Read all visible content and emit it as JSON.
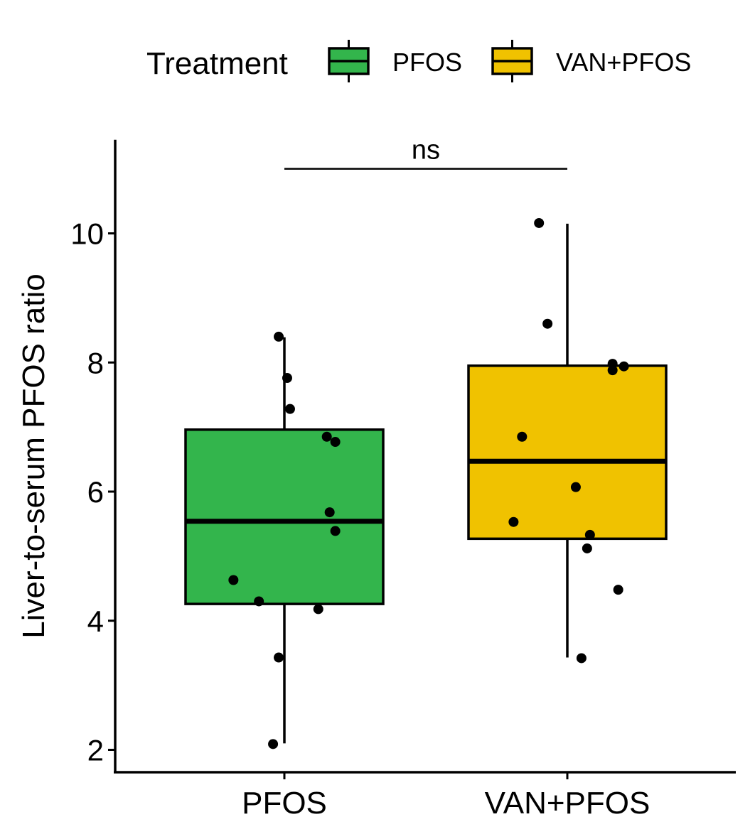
{
  "chart_data": {
    "type": "box",
    "legend": {
      "title": "Treatment",
      "position": "top",
      "entries": [
        {
          "label": "PFOS",
          "color": "#33b54c"
        },
        {
          "label": "VAN+PFOS",
          "color": "#f0c200"
        }
      ]
    },
    "xlabel": "",
    "ylabel": "Liver-to-serum PFOS ratio",
    "categories": [
      "PFOS",
      "VAN+PFOS"
    ],
    "ylim": [
      1.65,
      11.45
    ],
    "yticks": [
      2,
      4,
      6,
      8,
      10
    ],
    "ytick_labels": [
      "2",
      "4",
      "6",
      "8",
      "10"
    ],
    "grid": false,
    "boxes": [
      {
        "name": "PFOS",
        "color": "#33b54c",
        "min": 2.1,
        "q1": 4.26,
        "median": 5.54,
        "q3": 6.96,
        "max": 8.39
      },
      {
        "name": "VAN+PFOS",
        "color": "#f0c200",
        "min": 3.43,
        "q1": 5.27,
        "median": 6.47,
        "q3": 7.95,
        "max": 10.15
      }
    ],
    "points": [
      {
        "group": "PFOS",
        "values": [
          8.4,
          7.76,
          7.28,
          6.85,
          6.77,
          5.68,
          5.39,
          4.63,
          4.3,
          4.18,
          3.43,
          2.09
        ],
        "offsets": [
          -0.02,
          0.01,
          0.02,
          0.15,
          0.18,
          0.16,
          0.18,
          -0.18,
          -0.09,
          0.12,
          -0.02,
          -0.04
        ]
      },
      {
        "group": "VAN+PFOS",
        "values": [
          10.16,
          8.6,
          7.98,
          7.94,
          7.88,
          6.85,
          6.07,
          5.53,
          5.33,
          5.12,
          4.48,
          3.42
        ],
        "offsets": [
          -0.1,
          -0.07,
          0.16,
          0.2,
          0.16,
          -0.16,
          0.03,
          -0.19,
          0.08,
          0.07,
          0.18,
          0.05
        ]
      }
    ],
    "annotation": {
      "label": "ns",
      "from": "PFOS",
      "to": "VAN+PFOS",
      "y": 11.0
    }
  }
}
